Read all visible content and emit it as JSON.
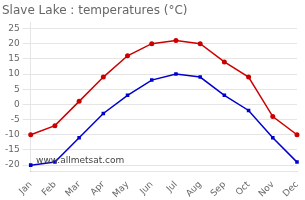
{
  "chart_data": {
    "type": "line",
    "title": "Slave Lake : temperatures (°C)",
    "categories": [
      "Jan",
      "Feb",
      "Mar",
      "Apr",
      "May",
      "Jun",
      "Jul",
      "Aug",
      "Sep",
      "Oct",
      "Nov",
      "Dec"
    ],
    "series": [
      {
        "color": "#cc0000",
        "marker": "circle",
        "values": [
          -10,
          -7,
          1,
          9,
          16,
          20,
          21,
          20,
          14,
          9,
          -4,
          -10
        ]
      },
      {
        "color": "#0000cc",
        "marker": "square",
        "values": [
          -20,
          -19,
          -11,
          -3,
          3,
          8,
          10,
          9,
          3,
          -2,
          -11,
          -19
        ]
      }
    ],
    "ylim": [
      -22,
      27
    ],
    "yticks": [
      -20,
      -15,
      -10,
      -5,
      0,
      5,
      10,
      15,
      20,
      25
    ],
    "grid": "y",
    "annotations": [
      "www.allmetsat.com"
    ]
  }
}
